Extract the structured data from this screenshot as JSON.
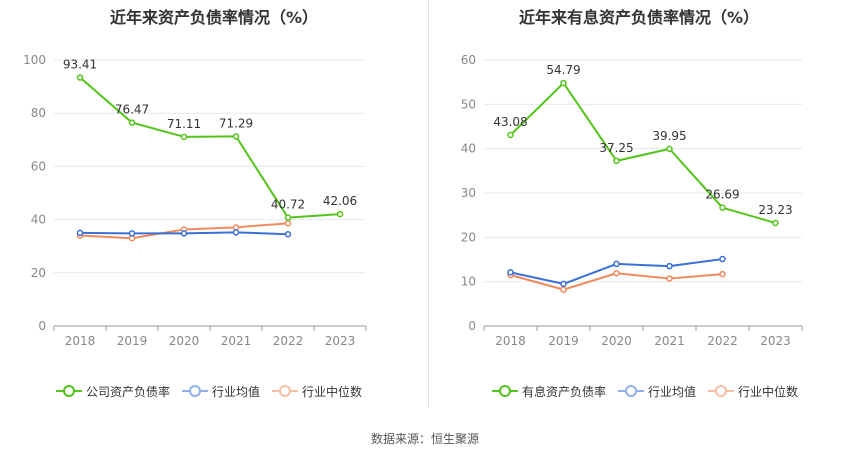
{
  "source_text": "数据来源：恒生聚源",
  "chart_data": [
    {
      "type": "line",
      "title": "近年来资产负债率情况（%）",
      "categories": [
        "2018",
        "2019",
        "2020",
        "2021",
        "2022",
        "2023"
      ],
      "ylim": [
        0,
        100
      ],
      "yticks": [
        "0",
        "20",
        "40",
        "60",
        "80",
        "100"
      ],
      "series": [
        {
          "name": "公司资产负债率",
          "color": "#52c41a",
          "values": [
            93.41,
            76.47,
            71.11,
            71.29,
            40.72,
            42.06
          ],
          "labels": [
            "93.41",
            "76.47",
            "71.11",
            "71.29",
            "40.72",
            "42.06"
          ]
        },
        {
          "name": "行业均值",
          "color": "#3a6fd8",
          "values": [
            35.0,
            34.8,
            34.8,
            35.2,
            34.5,
            null
          ]
        },
        {
          "name": "行业中位数",
          "color": "#f08a5d",
          "values": [
            34.0,
            33.0,
            36.3,
            37.1,
            38.6,
            null
          ]
        }
      ]
    },
    {
      "type": "line",
      "title": "近年来有息资产负债率情况（%）",
      "categories": [
        "2018",
        "2019",
        "2020",
        "2021",
        "2022",
        "2023"
      ],
      "ylim": [
        0,
        60
      ],
      "yticks": [
        "0",
        "10",
        "20",
        "30",
        "40",
        "50",
        "60"
      ],
      "series": [
        {
          "name": "有息资产负债率",
          "color": "#52c41a",
          "values": [
            43.08,
            54.79,
            37.25,
            39.95,
            26.69,
            23.23
          ],
          "labels": [
            "43.08",
            "54.79",
            "37.25",
            "39.95",
            "26.69",
            "23.23"
          ]
        },
        {
          "name": "行业均值",
          "color": "#3a6fd8",
          "values": [
            12.1,
            9.5,
            14.0,
            13.5,
            15.1,
            null
          ]
        },
        {
          "name": "行业中位数",
          "color": "#f08a5d",
          "values": [
            11.5,
            8.2,
            11.9,
            10.7,
            11.7,
            null
          ]
        }
      ]
    }
  ]
}
